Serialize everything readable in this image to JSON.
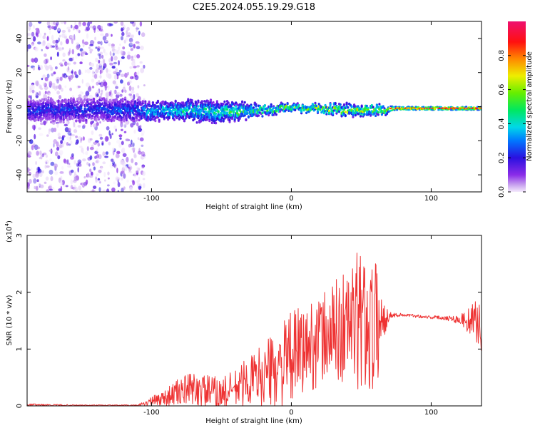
{
  "title": "C2E5.2024.055.19.29.G18",
  "chart_data": [
    {
      "type": "heatmap",
      "xlabel": "Height of straight line (km)",
      "ylabel": "Frequency (Hz)",
      "xlim": [
        -189,
        136
      ],
      "ylim": [
        -50,
        50
      ],
      "x_ticks": [
        -100,
        0,
        100
      ],
      "y_ticks": [
        -40,
        -20,
        0,
        20,
        40
      ],
      "colorbar": {
        "label": "Normalized spectral amplitude",
        "range": [
          0,
          1
        ],
        "ticks": [
          "0.0",
          "0.2",
          "0.4",
          "0.6",
          "0.8"
        ]
      },
      "ridge": {
        "description_values": {
          "x": [
            -189,
            -150,
            -110,
            -100,
            -80,
            -60,
            -40,
            -20,
            0,
            20,
            40,
            60,
            75,
            100,
            136
          ],
          "center_frequency_hz": [
            -2,
            -2,
            -2,
            -3,
            -2,
            -3,
            -3,
            -2,
            -1,
            -1,
            -2,
            -2,
            -1,
            -1,
            -1
          ],
          "half_width_hz": [
            6,
            6,
            6,
            5,
            5,
            6,
            5,
            3,
            2,
            2,
            3,
            3,
            1,
            1,
            1
          ],
          "peak_amplitude": [
            0.3,
            0.3,
            0.35,
            0.5,
            0.55,
            0.55,
            0.6,
            0.65,
            0.75,
            0.8,
            0.75,
            0.8,
            0.95,
            0.95,
            0.95
          ]
        },
        "noise_region_x": [
          -189,
          -105
        ]
      }
    },
    {
      "type": "line",
      "xlabel": "Height of straight line (km)",
      "ylabel": "SNR (10 * v/v)",
      "y_scale_label": "(x10",
      "y_scale_exponent": "4",
      "xlim": [
        -189,
        136
      ],
      "ylim": [
        0,
        3
      ],
      "x_ticks": [
        -100,
        0,
        100
      ],
      "y_ticks": [
        0,
        1,
        2,
        3
      ],
      "color": "#ee3333",
      "envelope": {
        "x": [
          -189,
          -150,
          -110,
          -100,
          -90,
          -80,
          -70,
          -60,
          -50,
          -40,
          -30,
          -20,
          -10,
          0,
          10,
          20,
          30,
          40,
          50,
          60,
          70,
          80,
          90,
          100,
          110,
          120,
          130,
          136
        ],
        "mean": [
          0.02,
          0.01,
          0.01,
          0.08,
          0.15,
          0.25,
          0.3,
          0.25,
          0.2,
          0.3,
          0.45,
          0.55,
          0.65,
          0.85,
          1.0,
          1.15,
          1.3,
          1.4,
          1.5,
          1.4,
          1.6,
          1.6,
          1.58,
          1.56,
          1.55,
          1.52,
          1.5,
          1.45
        ],
        "spread": [
          0.02,
          0.01,
          0.01,
          0.08,
          0.15,
          0.25,
          0.3,
          0.3,
          0.3,
          0.35,
          0.45,
          0.55,
          0.7,
          0.8,
          0.8,
          0.8,
          0.9,
          1.1,
          1.3,
          1.2,
          0.05,
          0.03,
          0.03,
          0.03,
          0.04,
          0.08,
          0.3,
          0.5
        ]
      }
    }
  ]
}
